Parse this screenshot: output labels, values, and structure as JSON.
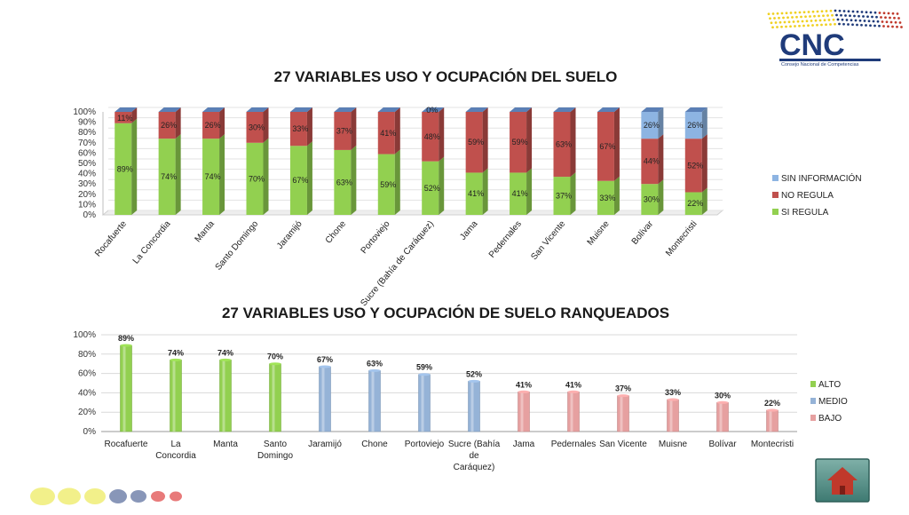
{
  "logo": {
    "text": "CNC",
    "subtitle": "Consejo Nacional de Competencias"
  },
  "colors": {
    "si": "#92d050",
    "no": "#c0504d",
    "sin": "#8db4e2",
    "alto": "#92d050",
    "medio": "#95b3d7",
    "bajo": "#e6a0a0"
  },
  "chart_data": [
    {
      "type": "bar",
      "stacked": true,
      "title": "27 VARIABLES USO Y OCUPACIÓN DEL SUELO",
      "categories": [
        "Rocafuerte",
        "La Concordia",
        "Manta",
        "Santo Domingo",
        "Jaramijó",
        "Chone",
        "Portoviejo",
        "Sucre (Bahía de Caráquez)",
        "Jama",
        "Pedernales",
        "San Vicente",
        "Muisne",
        "Bolívar",
        "Montecristi"
      ],
      "yticks": [
        "0%",
        "10%",
        "20%",
        "30%",
        "40%",
        "50%",
        "60%",
        "70%",
        "80%",
        "90%",
        "100%"
      ],
      "ylim": [
        0,
        100
      ],
      "series": [
        {
          "name": "SI REGULA",
          "values": [
            89,
            74,
            74,
            70,
            67,
            63,
            59,
            52,
            41,
            41,
            37,
            33,
            30,
            22
          ],
          "labels": [
            "89%",
            "74%",
            "74%",
            "70%",
            "67%",
            "63%",
            "59%",
            "52%",
            "41%",
            "41%",
            "37%",
            "33%",
            "30%",
            "22%"
          ]
        },
        {
          "name": "NO REGULA",
          "values": [
            11,
            26,
            26,
            30,
            33,
            37,
            41,
            48,
            59,
            59,
            63,
            67,
            44,
            52
          ],
          "labels": [
            "11%",
            "26%",
            "26%",
            "30%",
            "33%",
            "37%",
            "41%",
            "48%",
            "59%",
            "59%",
            "63%",
            "67%",
            "44%",
            "52%"
          ]
        },
        {
          "name": "SIN INFORMACIÓN",
          "values": [
            0,
            0,
            0,
            0,
            0,
            0,
            0,
            0,
            0,
            0,
            0,
            0,
            26,
            26
          ],
          "labels": [
            "",
            "",
            "",
            "",
            "",
            "",
            "",
            "0%",
            "",
            "",
            "",
            "",
            "26%",
            "26%"
          ]
        }
      ],
      "legend": [
        "SIN INFORMACIÓN",
        "NO REGULA",
        "SI REGULA"
      ],
      "legend_position": "right"
    },
    {
      "type": "bar",
      "title": "27 VARIABLES USO Y OCUPACIÓN DE SUELO RANQUEADOS",
      "categories": [
        "Rocafuerte",
        "La Concordia",
        "Manta",
        "Santo Domingo",
        "Jaramijó",
        "Chone",
        "Portoviejo",
        "Sucre (Bahía de Caráquez)",
        "Jama",
        "Pedernales",
        "San Vicente",
        "Muisne",
        "Bolívar",
        "Montecristi"
      ],
      "category_lines": [
        [
          "Rocafuerte"
        ],
        [
          "La",
          "Concordia"
        ],
        [
          "Manta"
        ],
        [
          "Santo",
          "Domingo"
        ],
        [
          "Jaramijó"
        ],
        [
          "Chone"
        ],
        [
          "Portoviejo"
        ],
        [
          "Sucre (Bahía",
          "de",
          "Caráquez)"
        ],
        [
          "Jama"
        ],
        [
          "Pedernales"
        ],
        [
          "San Vicente"
        ],
        [
          "Muisne"
        ],
        [
          "Bolívar"
        ],
        [
          "Montecristi"
        ]
      ],
      "values": [
        89,
        74,
        74,
        70,
        67,
        63,
        59,
        52,
        41,
        41,
        37,
        33,
        30,
        22
      ],
      "labels": [
        "89%",
        "74%",
        "74%",
        "70%",
        "67%",
        "63%",
        "59%",
        "52%",
        "41%",
        "41%",
        "37%",
        "33%",
        "30%",
        "22%"
      ],
      "levels": [
        "ALTO",
        "ALTO",
        "ALTO",
        "ALTO",
        "MEDIO",
        "MEDIO",
        "MEDIO",
        "MEDIO",
        "BAJO",
        "BAJO",
        "BAJO",
        "BAJO",
        "BAJO",
        "BAJO"
      ],
      "yticks": [
        "0%",
        "20%",
        "40%",
        "60%",
        "80%",
        "100%"
      ],
      "ylim": [
        0,
        100
      ],
      "legend": [
        "ALTO",
        "MEDIO",
        "BAJO"
      ],
      "legend_position": "right"
    }
  ]
}
